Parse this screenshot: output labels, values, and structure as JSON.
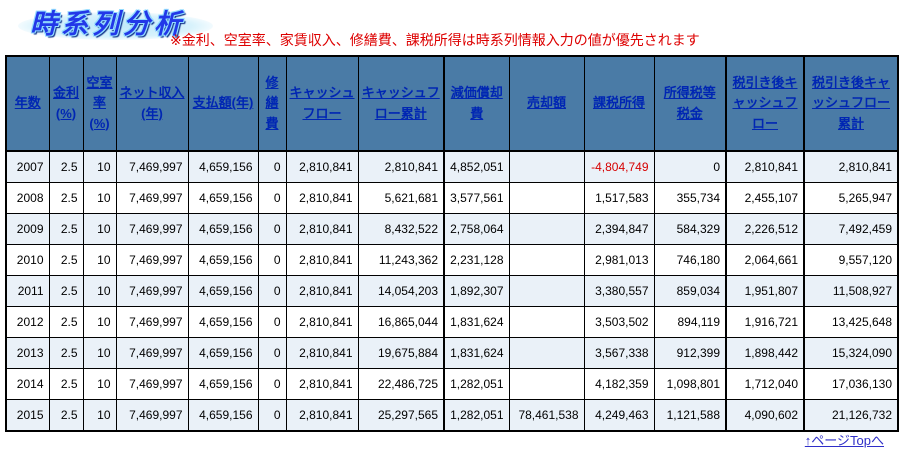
{
  "page": {
    "title": "時系列分析",
    "note": "※金利、空室率、家賃収入、修繕費、課税所得は時系列情報入力の値が優先されます",
    "footer_link": "↑ページTopへ"
  },
  "colors": {
    "header_bg": "#4A7BA6",
    "header_text": "#0026B3",
    "row_alt": "#EAF1F8",
    "negative_value": "#D60000",
    "note_red": "#DD0000",
    "title_blue": "#2238E8",
    "link_blue": "#2E2EC8",
    "grid_border": "#000000"
  },
  "table": {
    "columns": [
      {
        "id": "year",
        "label": "年数"
      },
      {
        "id": "interest",
        "label": "金利(%)"
      },
      {
        "id": "vacancy",
        "label": "空室率(%)"
      },
      {
        "id": "net_income",
        "label": "ネット収入(年)"
      },
      {
        "id": "payment",
        "label": "支払額(年)"
      },
      {
        "id": "repair",
        "label": "修繕費"
      },
      {
        "id": "cashflow",
        "label": "キャッシュフロー"
      },
      {
        "id": "cashflow_cum",
        "label": "キャッシュフロー累計"
      },
      {
        "id": "depreciation",
        "label": "減価償却費"
      },
      {
        "id": "sale",
        "label": "売却額"
      },
      {
        "id": "taxable_income",
        "label": "課税所得"
      },
      {
        "id": "income_tax",
        "label": "所得税等税金"
      },
      {
        "id": "aftertax_cf",
        "label": "税引き後キャッシュフロー"
      },
      {
        "id": "aftertax_cf_cum",
        "label": "税引き後キャッシュフロー累計"
      }
    ],
    "rows": [
      {
        "year": "2007",
        "interest": "2.5",
        "vacancy": "10",
        "net_income": "7,469,997",
        "payment": "4,659,156",
        "repair": "0",
        "cashflow": "2,810,841",
        "cashflow_cum": "2,810,841",
        "depreciation": "4,852,051",
        "sale": "",
        "taxable_income": "-4,804,749",
        "income_tax": "0",
        "aftertax_cf": "2,810,841",
        "aftertax_cf_cum": "2,810,841"
      },
      {
        "year": "2008",
        "interest": "2.5",
        "vacancy": "10",
        "net_income": "7,469,997",
        "payment": "4,659,156",
        "repair": "0",
        "cashflow": "2,810,841",
        "cashflow_cum": "5,621,681",
        "depreciation": "3,577,561",
        "sale": "",
        "taxable_income": "1,517,583",
        "income_tax": "355,734",
        "aftertax_cf": "2,455,107",
        "aftertax_cf_cum": "5,265,947"
      },
      {
        "year": "2009",
        "interest": "2.5",
        "vacancy": "10",
        "net_income": "7,469,997",
        "payment": "4,659,156",
        "repair": "0",
        "cashflow": "2,810,841",
        "cashflow_cum": "8,432,522",
        "depreciation": "2,758,064",
        "sale": "",
        "taxable_income": "2,394,847",
        "income_tax": "584,329",
        "aftertax_cf": "2,226,512",
        "aftertax_cf_cum": "7,492,459"
      },
      {
        "year": "2010",
        "interest": "2.5",
        "vacancy": "10",
        "net_income": "7,469,997",
        "payment": "4,659,156",
        "repair": "0",
        "cashflow": "2,810,841",
        "cashflow_cum": "11,243,362",
        "depreciation": "2,231,128",
        "sale": "",
        "taxable_income": "2,981,013",
        "income_tax": "746,180",
        "aftertax_cf": "2,064,661",
        "aftertax_cf_cum": "9,557,120"
      },
      {
        "year": "2011",
        "interest": "2.5",
        "vacancy": "10",
        "net_income": "7,469,997",
        "payment": "4,659,156",
        "repair": "0",
        "cashflow": "2,810,841",
        "cashflow_cum": "14,054,203",
        "depreciation": "1,892,307",
        "sale": "",
        "taxable_income": "3,380,557",
        "income_tax": "859,034",
        "aftertax_cf": "1,951,807",
        "aftertax_cf_cum": "11,508,927"
      },
      {
        "year": "2012",
        "interest": "2.5",
        "vacancy": "10",
        "net_income": "7,469,997",
        "payment": "4,659,156",
        "repair": "0",
        "cashflow": "2,810,841",
        "cashflow_cum": "16,865,044",
        "depreciation": "1,831,624",
        "sale": "",
        "taxable_income": "3,503,502",
        "income_tax": "894,119",
        "aftertax_cf": "1,916,721",
        "aftertax_cf_cum": "13,425,648"
      },
      {
        "year": "2013",
        "interest": "2.5",
        "vacancy": "10",
        "net_income": "7,469,997",
        "payment": "4,659,156",
        "repair": "0",
        "cashflow": "2,810,841",
        "cashflow_cum": "19,675,884",
        "depreciation": "1,831,624",
        "sale": "",
        "taxable_income": "3,567,338",
        "income_tax": "912,399",
        "aftertax_cf": "1,898,442",
        "aftertax_cf_cum": "15,324,090"
      },
      {
        "year": "2014",
        "interest": "2.5",
        "vacancy": "10",
        "net_income": "7,469,997",
        "payment": "4,659,156",
        "repair": "0",
        "cashflow": "2,810,841",
        "cashflow_cum": "22,486,725",
        "depreciation": "1,282,051",
        "sale": "",
        "taxable_income": "4,182,359",
        "income_tax": "1,098,801",
        "aftertax_cf": "1,712,040",
        "aftertax_cf_cum": "17,036,130"
      },
      {
        "year": "2015",
        "interest": "2.5",
        "vacancy": "10",
        "net_income": "7,469,997",
        "payment": "4,659,156",
        "repair": "0",
        "cashflow": "2,810,841",
        "cashflow_cum": "25,297,565",
        "depreciation": "1,282,051",
        "sale": "78,461,538",
        "taxable_income": "4,249,463",
        "income_tax": "1,121,588",
        "aftertax_cf": "4,090,602",
        "aftertax_cf_cum": "21,126,732"
      }
    ]
  }
}
